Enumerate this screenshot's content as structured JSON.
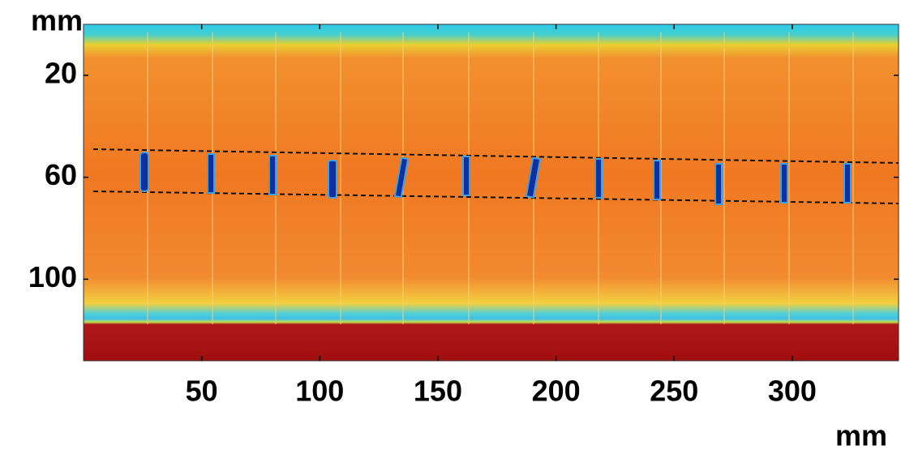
{
  "chart_data": {
    "type": "heatmap",
    "xlabel": "mm",
    "ylabel": "mm",
    "xlim": [
      0,
      345
    ],
    "ylim": [
      0,
      132
    ],
    "y_inverted": true,
    "xticks": [
      50,
      100,
      150,
      200,
      250,
      300
    ],
    "yticks": [
      20,
      60,
      100
    ]
  }
}
